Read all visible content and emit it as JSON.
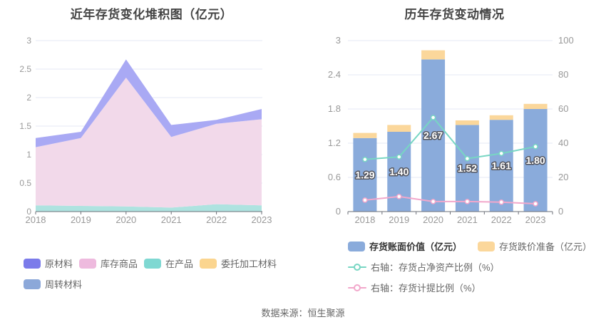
{
  "source_note": "数据来源：恒生聚源",
  "colors": {
    "grid": "#e4e8f5",
    "axis_line": "#6e7079",
    "tick_text": "#999999",
    "title_text": "#444444",
    "bar_label_fill": "#ffffff",
    "bar_label_stroke": "#55565e"
  },
  "chart_data": [
    {
      "type": "area",
      "stacked": true,
      "title": "近年存货变化堆积图（亿元）",
      "categories": [
        "2018",
        "2019",
        "2020",
        "2021",
        "2022",
        "2023"
      ],
      "xlabel": "",
      "ylabel": "",
      "ylim": [
        0,
        3
      ],
      "yticks": [
        0,
        0.5,
        1,
        1.5,
        2,
        2.5,
        3
      ],
      "grid": true,
      "legend_position": "bottom",
      "stack_bottom_to_top": [
        "在产品",
        "库存商品",
        "原材料",
        "委托加工材料",
        "周转材料"
      ],
      "series": [
        {
          "name": "原材料",
          "color": "#7b7bea",
          "fill": "#a9a9f4",
          "values": [
            0.16,
            0.11,
            0.32,
            0.21,
            0.07,
            0.18
          ]
        },
        {
          "name": "库存商品",
          "color": "#eebade",
          "fill": "#f2d9ea",
          "values": [
            1.02,
            1.19,
            2.26,
            1.24,
            1.41,
            1.51
          ]
        },
        {
          "name": "在产品",
          "color": "#7fd8d2",
          "fill": "#aee3e0",
          "values": [
            0.11,
            0.1,
            0.09,
            0.07,
            0.13,
            0.11
          ]
        },
        {
          "name": "委托加工材料",
          "color": "#fbd58f",
          "fill": "#fde7bd",
          "values": [
            0,
            0,
            0,
            0,
            0,
            0
          ]
        },
        {
          "name": "周转材料",
          "color": "#8ca8d9",
          "fill": "#b9cbe8",
          "values": [
            0,
            0,
            0,
            0,
            0,
            0
          ]
        }
      ]
    },
    {
      "type": "bar",
      "title": "历年存货变动情况",
      "categories": [
        "2018",
        "2019",
        "2020",
        "2021",
        "2022",
        "2023"
      ],
      "grid": true,
      "legend_position": "bottom",
      "left_axis": {
        "lim": [
          0,
          3
        ],
        "ticks": [
          0,
          0.6,
          1.2,
          1.8,
          2.4,
          3
        ]
      },
      "right_axis": {
        "lim": [
          0,
          100
        ],
        "ticks": [
          0,
          20,
          40,
          60,
          80,
          100
        ]
      },
      "bar_series": [
        {
          "name": "存货账面价值（亿元）",
          "color": "#8aabdb",
          "bold_legend": true,
          "values": [
            1.29,
            1.4,
            2.67,
            1.52,
            1.61,
            1.8
          ],
          "labels": [
            "1.29",
            "1.40",
            "2.67",
            "1.52",
            "1.61",
            "1.80"
          ]
        },
        {
          "name": "存货跌价准备（亿元）",
          "color": "#fbd79b",
          "bold_legend": false,
          "values": [
            0.09,
            0.12,
            0.16,
            0.08,
            0.08,
            0.09
          ]
        }
      ],
      "line_series": [
        {
          "name": "右轴：存货占净资产比例（%）",
          "color": "#77d6c3",
          "axis": "right",
          "values": [
            30.5,
            32,
            55,
            31,
            34,
            38
          ]
        },
        {
          "name": "右轴：存货计提比例（%）",
          "color": "#f2a7cb",
          "axis": "right",
          "values": [
            6.7,
            8.8,
            5.9,
            5.9,
            5.5,
            4.6
          ]
        }
      ]
    }
  ]
}
